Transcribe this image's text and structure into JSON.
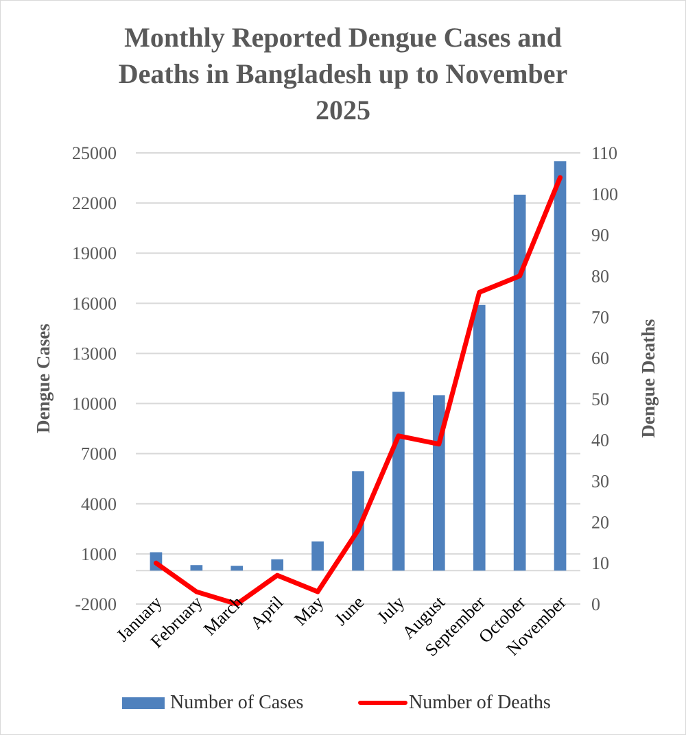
{
  "chart_data": {
    "type": "bar+line",
    "title": [
      "Monthly Reported Dengue Cases and",
      "Deaths in Bangladesh up to November",
      "2025"
    ],
    "categories": [
      "January",
      "February",
      "March",
      "April",
      "May",
      "June",
      "July",
      "August",
      "September",
      "October",
      "November"
    ],
    "series": [
      {
        "name": "Number of Cases",
        "type": "bar",
        "axis": "left",
        "color": "#4f81bd",
        "values": [
          1100,
          330,
          290,
          680,
          1750,
          5950,
          10700,
          10500,
          15900,
          22500,
          24500
        ]
      },
      {
        "name": "Number of Deaths",
        "type": "line",
        "axis": "right",
        "color": "#ff0000",
        "values": [
          10,
          3,
          0,
          7,
          3,
          18,
          41,
          39,
          76,
          80,
          104
        ]
      }
    ],
    "ylabel_left": "Dengue Cases",
    "ylabel_right": "Dengue Deaths",
    "ylim_left": [
      -2000,
      25000
    ],
    "ylim_right": [
      0,
      110
    ],
    "yticks_left": [
      "25000",
      "22000",
      "19000",
      "16000",
      "13000",
      "10000",
      "7000",
      "4000",
      "1000",
      "-2000"
    ],
    "yticks_right": [
      "110",
      "100",
      "90",
      "80",
      "70",
      "60",
      "50",
      "40",
      "30",
      "20",
      "10",
      "0"
    ],
    "grid": true,
    "legend_position": "bottom"
  }
}
